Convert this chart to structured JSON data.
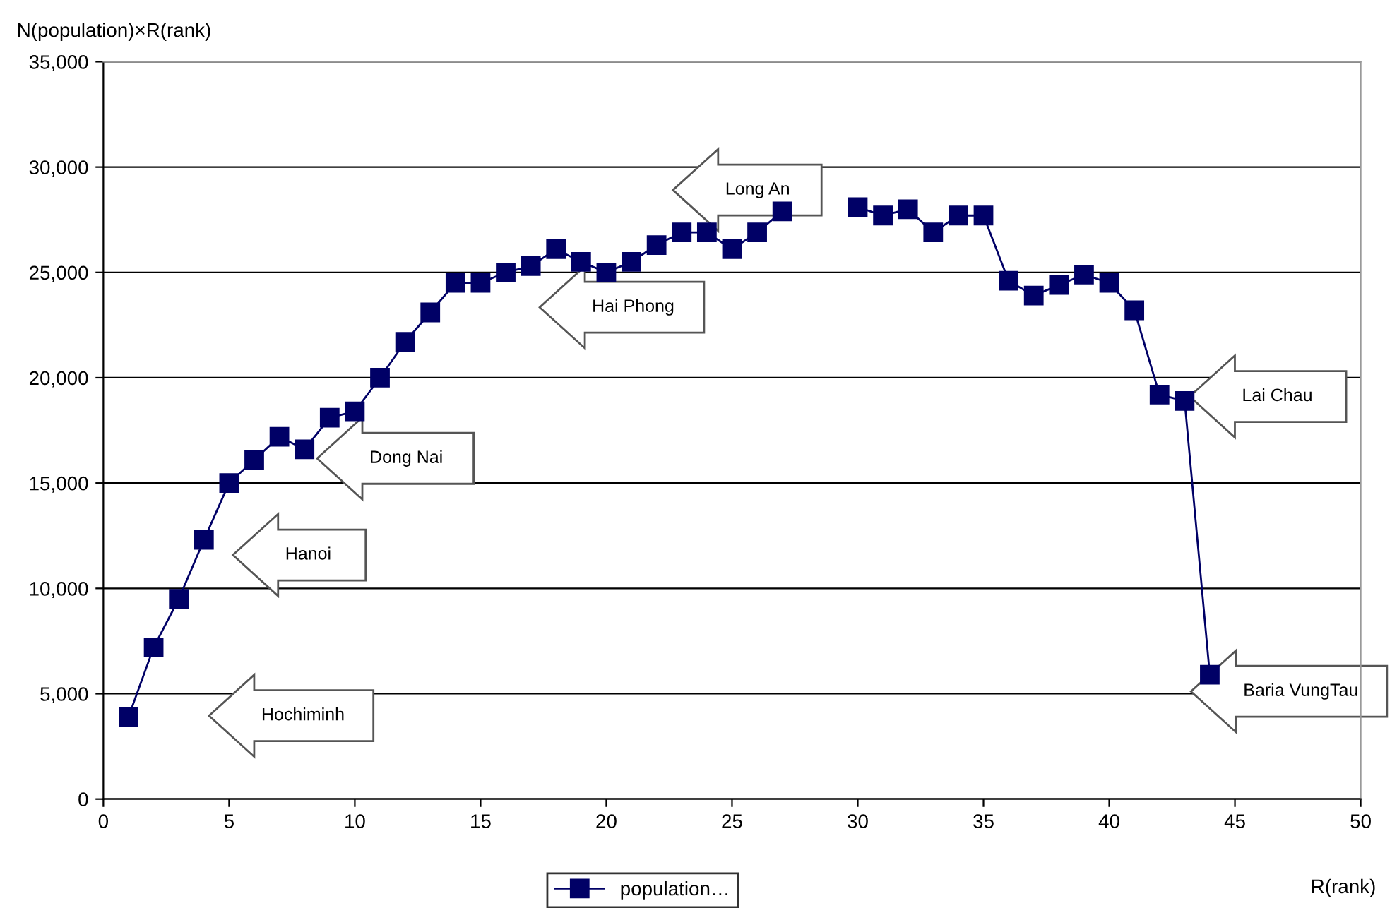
{
  "chart_data": {
    "type": "line",
    "ylabel": "N(population)×R(rank)",
    "xlabel": "R(rank)",
    "x": [
      1,
      2,
      3,
      4,
      5,
      6,
      7,
      8,
      9,
      10,
      11,
      12,
      13,
      14,
      15,
      16,
      17,
      18,
      19,
      20,
      21,
      22,
      23,
      24,
      25,
      26,
      27,
      28,
      29,
      30,
      31,
      32,
      33,
      34,
      35,
      36,
      37,
      38,
      39,
      40,
      41,
      42,
      43,
      44
    ],
    "series": [
      {
        "name": "population…",
        "color": "#000066",
        "values": [
          3900,
          7200,
          9500,
          12300,
          15000,
          16100,
          17200,
          16600,
          18100,
          18400,
          20000,
          21700,
          23100,
          24500,
          24500,
          25000,
          25300,
          26100,
          25500,
          25000,
          25500,
          26300,
          26900,
          26900,
          26100,
          26900,
          27900,
          null,
          null,
          28100,
          27700,
          28000,
          26900,
          27700,
          27700,
          24600,
          23900,
          24400,
          24900,
          24500,
          23200,
          19200,
          18900,
          5900
        ]
      }
    ],
    "xlim": [
      0,
      50
    ],
    "xticks": [
      0,
      5,
      10,
      15,
      20,
      25,
      30,
      35,
      40,
      45,
      50
    ],
    "ylim": [
      0,
      35000
    ],
    "yticks": [
      0,
      {
        "value": 5000,
        "label": "5,000"
      },
      {
        "value": 10000,
        "label": "10,000"
      },
      {
        "value": 15000,
        "label": "15,000"
      },
      {
        "value": 20000,
        "label": "20,000"
      },
      {
        "value": 25000,
        "label": "25,000"
      },
      {
        "value": 30000,
        "label": "30,000"
      },
      {
        "value": 35000,
        "label": "35,000"
      }
    ],
    "grid": "y",
    "legend": "bottom",
    "marker": "square",
    "line_style": "solid",
    "annotations": [
      "Hochiminh",
      "Hanoi",
      "Dong Nai",
      "Hai Phong",
      "Long An",
      "Lai Chau",
      "Baria VungTau"
    ]
  }
}
